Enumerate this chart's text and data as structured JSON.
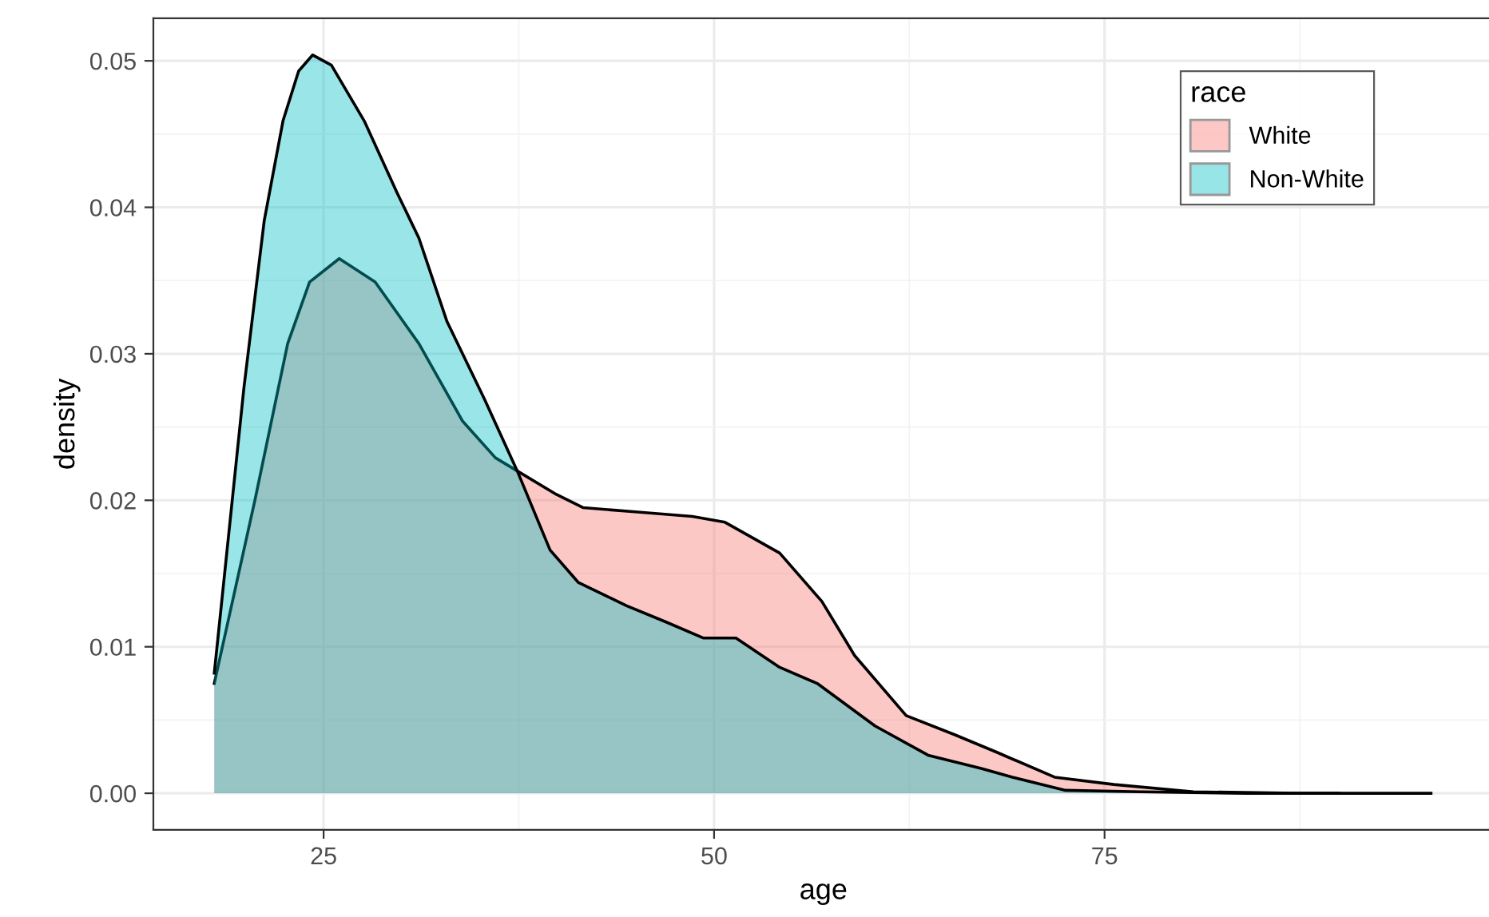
{
  "chart_data": {
    "type": "area",
    "xlabel": "age",
    "ylabel": "density",
    "legend_title": "race",
    "legend": "top right",
    "grid": true,
    "xlim": [
      14.1,
      99.9
    ],
    "xticks": [
      25,
      50,
      75
    ],
    "ylim": [
      -0.0025,
      0.0529
    ],
    "yticks": [
      {
        "value": 0,
        "label": "0.00"
      },
      {
        "value": 0.01,
        "label": "0.01"
      },
      {
        "value": 0.02,
        "label": "0.02"
      },
      {
        "value": 0.03,
        "label": "0.03"
      },
      {
        "value": 0.04,
        "label": "0.04"
      },
      {
        "value": 0.05,
        "label": "0.05"
      }
    ],
    "series": [
      {
        "name": "White",
        "color": "#f8766d",
        "x": [
          18.0,
          20.6,
          22.7,
          24.1,
          26.0,
          28.3,
          31.1,
          33.9,
          36.0,
          37.4,
          39.9,
          41.6,
          45.1,
          48.6,
          50.7,
          54.2,
          56.9,
          59.0,
          62.3,
          65.4,
          68.1,
          71.8,
          75.6,
          80.7,
          87.4,
          95.9
        ],
        "values": [
          0.0075,
          0.02,
          0.0307,
          0.0349,
          0.0365,
          0.0349,
          0.0307,
          0.0254,
          0.0229,
          0.022,
          0.0204,
          0.0195,
          0.0192,
          0.0189,
          0.0185,
          0.0164,
          0.0131,
          0.0094,
          0.0053,
          0.004,
          0.0028,
          0.0011,
          0.0006,
          0.0001,
          0.0,
          0.0
        ]
      },
      {
        "name": "Non-White",
        "color": "#00bfc4",
        "x": [
          18.0,
          19.9,
          21.2,
          22.4,
          23.4,
          24.3,
          25.5,
          27.6,
          29.7,
          31.1,
          32.9,
          35.3,
          37.4,
          39.5,
          41.3,
          44.4,
          46.9,
          49.3,
          51.4,
          54.2,
          56.6,
          60.3,
          63.7,
          67.1,
          69.1,
          72.5,
          77.3,
          84.1,
          90.0
        ],
        "values": [
          0.0082,
          0.0277,
          0.0391,
          0.0459,
          0.0493,
          0.0504,
          0.0497,
          0.0459,
          0.041,
          0.0379,
          0.0322,
          0.0269,
          0.022,
          0.0166,
          0.0144,
          0.0128,
          0.0117,
          0.0106,
          0.0106,
          0.0086,
          0.0075,
          0.0046,
          0.0026,
          0.0017,
          0.0011,
          0.0002,
          0.0001,
          0.0,
          0.0
        ]
      }
    ]
  }
}
